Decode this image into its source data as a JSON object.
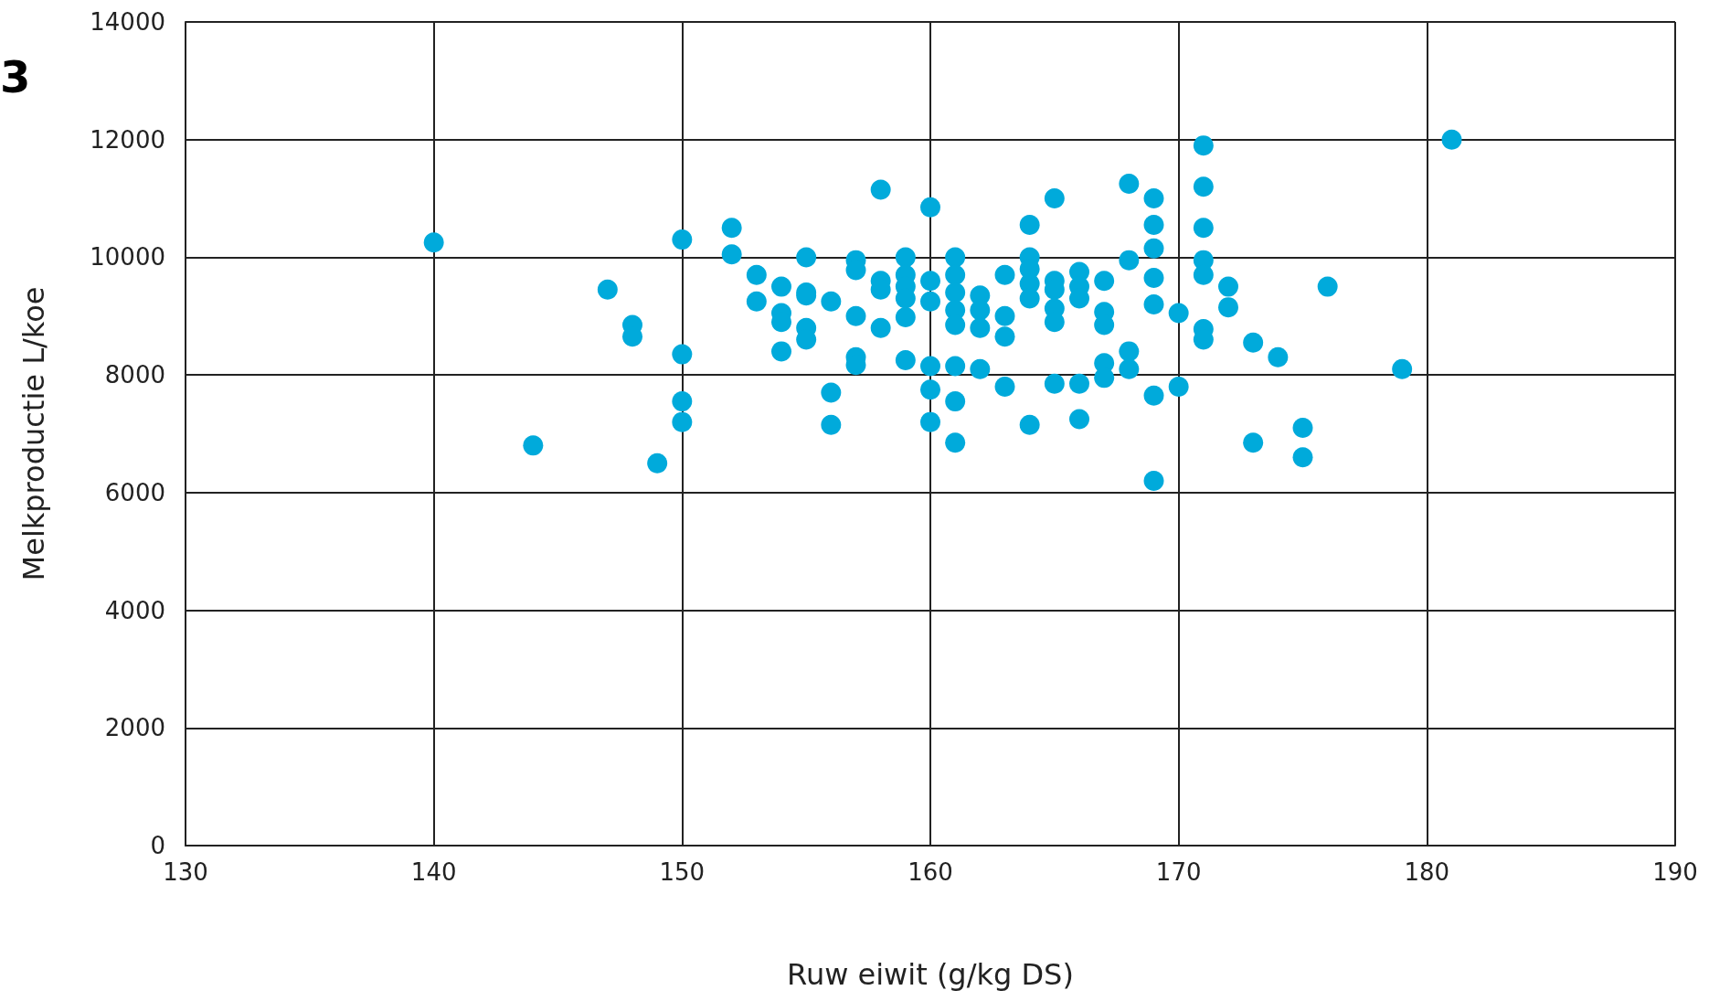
{
  "chart_data": {
    "type": "scatter",
    "xlabel": "Ruw eiwit (g/kg DS)",
    "ylabel": "Melkproductie L/koe",
    "annotations": [
      "3"
    ],
    "xlim": [
      130,
      190
    ],
    "xticks": [
      130,
      140,
      150,
      160,
      170,
      180,
      190
    ],
    "ylim": [
      0,
      14000
    ],
    "yticks": [
      0,
      2000,
      4000,
      6000,
      8000,
      10000,
      12000,
      14000
    ],
    "grid": true,
    "marker": "circle",
    "series": [
      {
        "color": "#00aadb",
        "x": [
          140,
          144,
          147,
          148,
          148,
          149,
          150,
          150,
          150,
          150,
          152,
          152,
          153,
          153,
          154,
          154,
          154,
          154,
          155,
          155,
          155,
          155,
          155,
          156,
          156,
          156,
          157,
          157,
          157,
          157,
          157,
          158,
          158,
          158,
          158,
          159,
          159,
          159,
          159,
          159,
          159,
          160,
          160,
          160,
          160,
          160,
          160,
          161,
          161,
          161,
          161,
          161,
          161,
          161,
          161,
          162,
          162,
          162,
          162,
          163,
          163,
          163,
          163,
          164,
          164,
          164,
          164,
          164,
          164,
          165,
          165,
          165,
          165,
          165,
          165,
          166,
          166,
          166,
          166,
          166,
          167,
          167,
          167,
          167,
          167,
          168,
          168,
          168,
          168,
          169,
          169,
          169,
          169,
          169,
          169,
          169,
          170,
          170,
          171,
          171,
          171,
          171,
          171,
          171,
          171,
          172,
          172,
          173,
          173,
          174,
          175,
          175,
          176,
          179,
          181
        ],
        "values": [
          10250,
          6800,
          9450,
          8850,
          8650,
          6500,
          10300,
          8350,
          7550,
          7200,
          10500,
          10050,
          9700,
          9250,
          9500,
          9050,
          8900,
          8400,
          10000,
          9400,
          9350,
          8800,
          8600,
          9250,
          7700,
          7150,
          9950,
          9780,
          9000,
          8300,
          8170,
          11150,
          9600,
          9450,
          8800,
          10000,
          9700,
          9500,
          9300,
          8980,
          8250,
          10850,
          9600,
          9250,
          8150,
          7750,
          7200,
          10000,
          9700,
          9400,
          9100,
          8850,
          8150,
          7550,
          6850,
          9350,
          9100,
          8800,
          8100,
          9700,
          9000,
          8650,
          7800,
          10550,
          10000,
          9800,
          9550,
          9300,
          7150,
          11000,
          9600,
          9450,
          9130,
          8900,
          7850,
          9750,
          9500,
          9300,
          7850,
          7250,
          9600,
          9070,
          8850,
          8200,
          7950,
          11250,
          9950,
          8400,
          8100,
          11000,
          10550,
          10150,
          9650,
          9200,
          7650,
          6200,
          9050,
          7800,
          11900,
          11200,
          10500,
          9950,
          9700,
          8780,
          8600,
          9500,
          9150,
          8550,
          6850,
          8300,
          7100,
          6600,
          9500,
          8100,
          12000
        ]
      }
    ]
  }
}
